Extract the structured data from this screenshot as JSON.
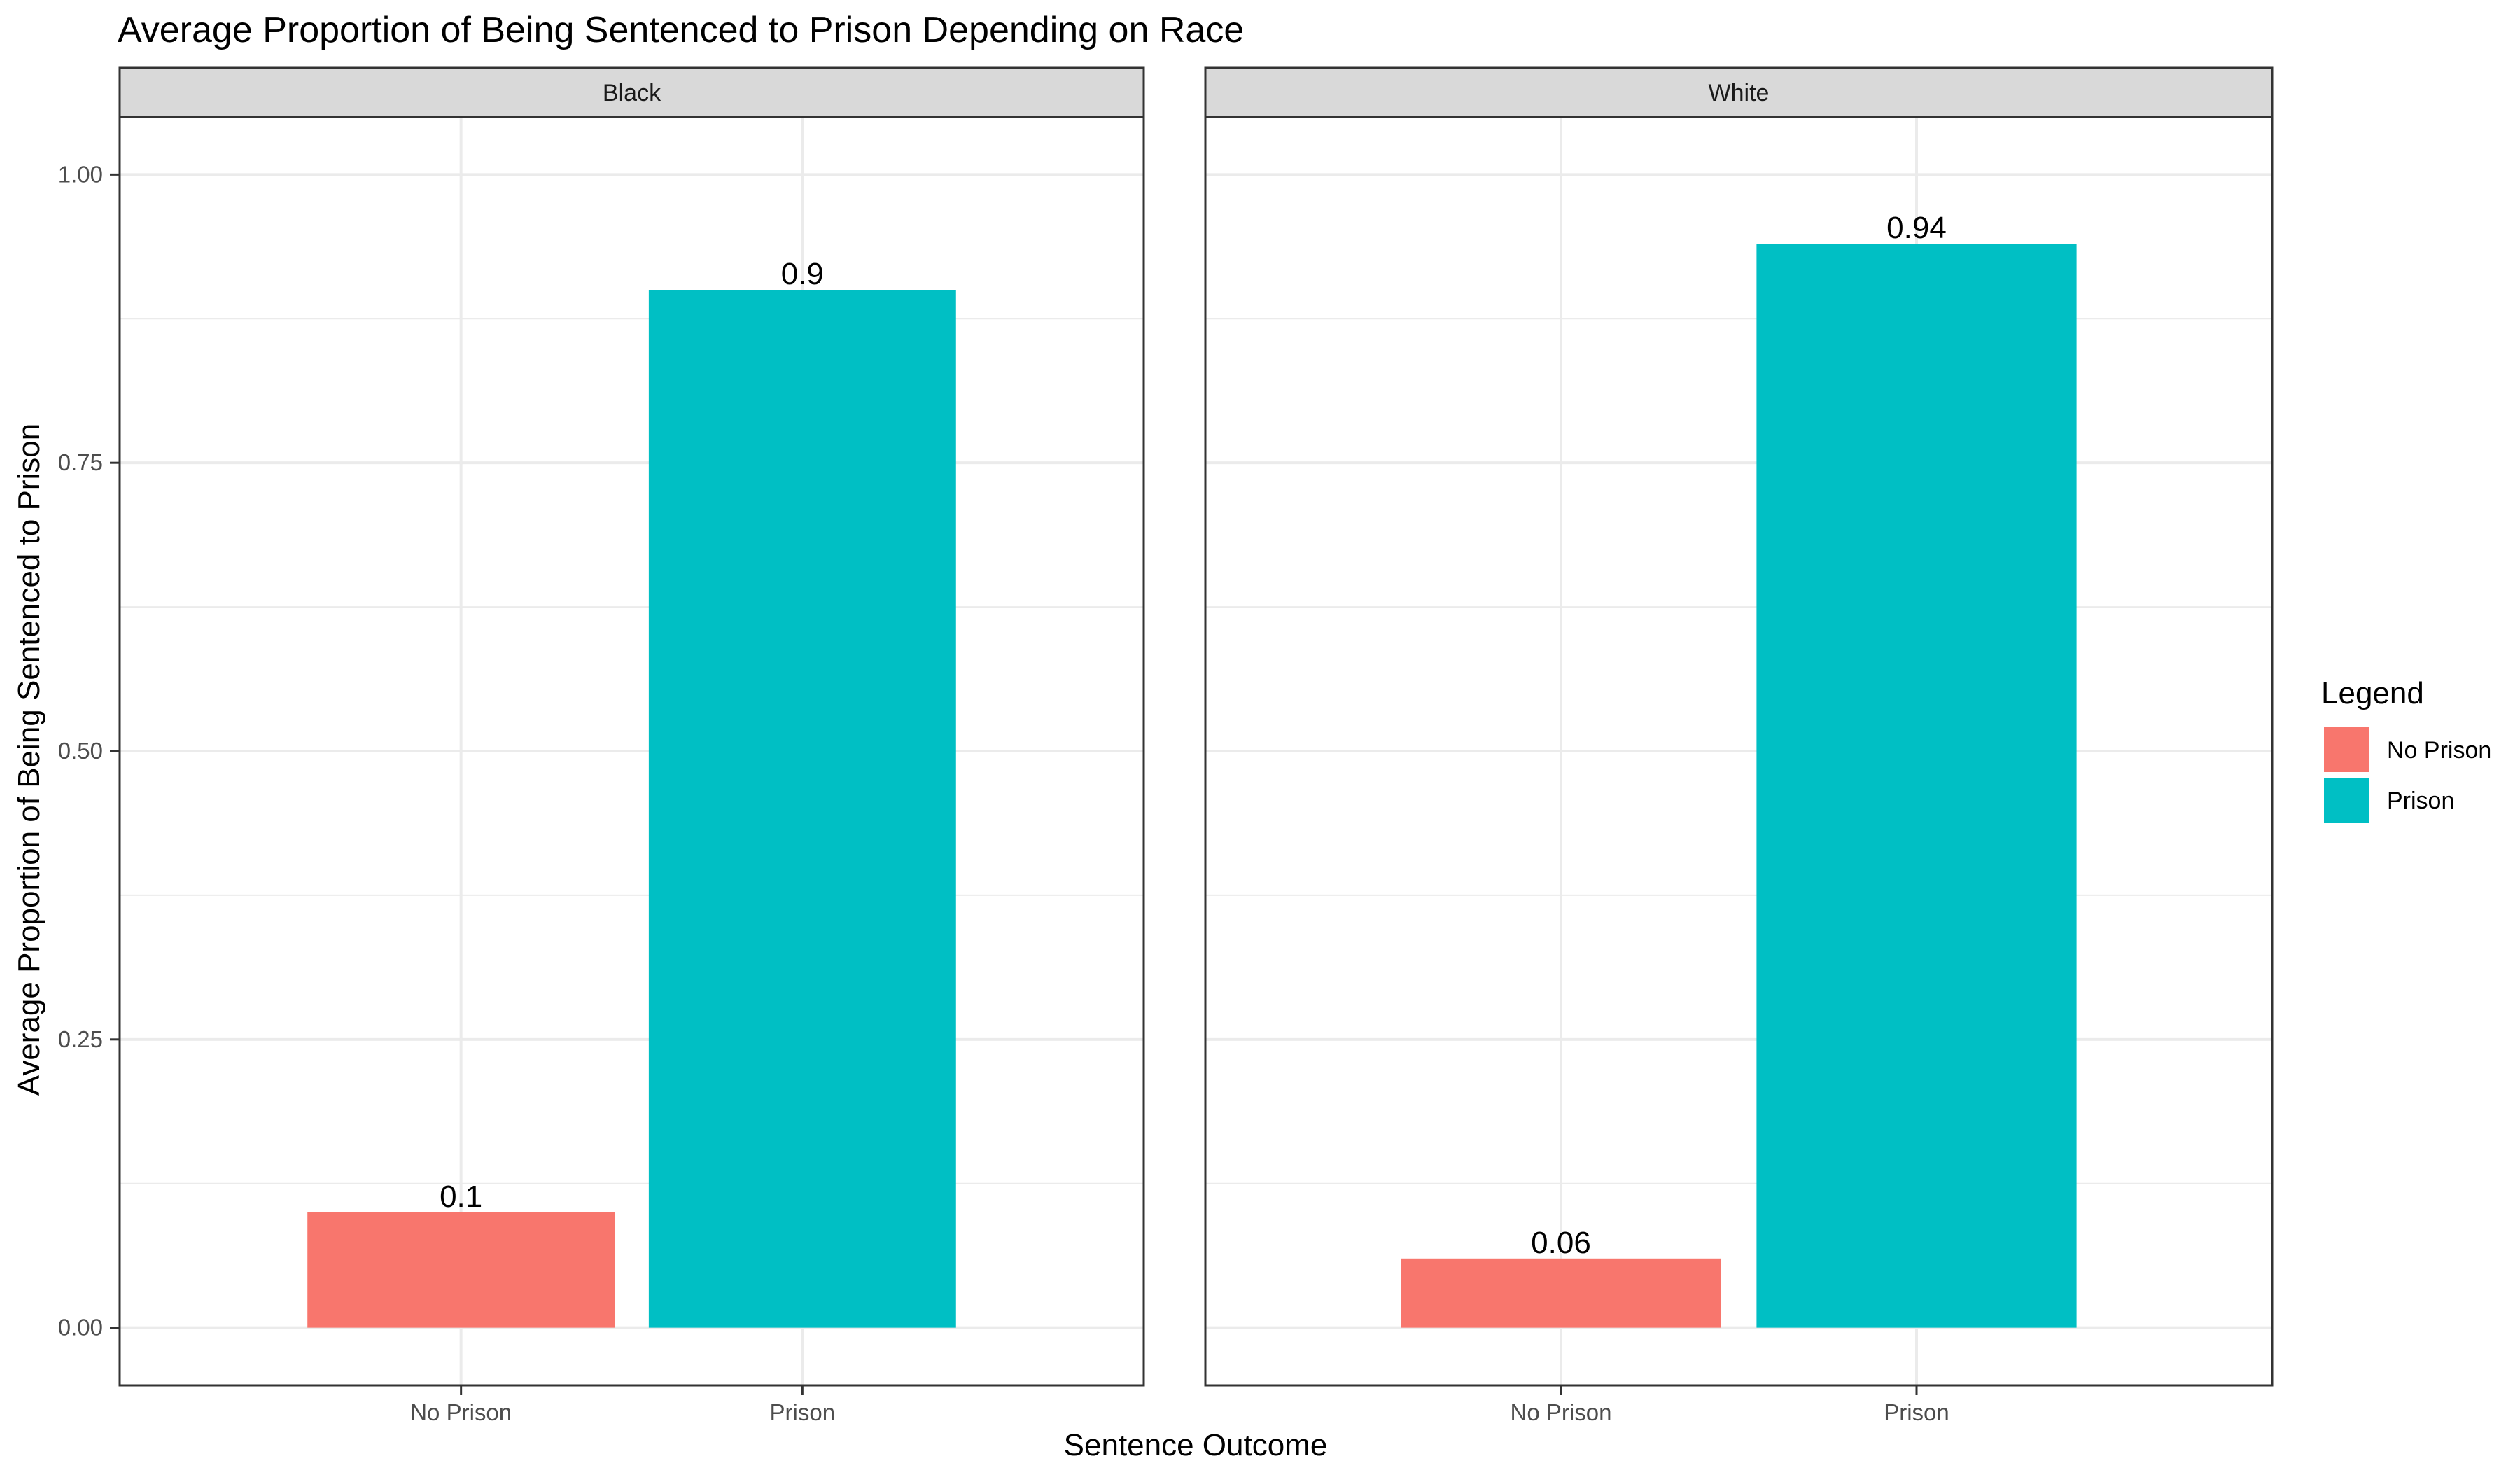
{
  "chart_data": {
    "type": "bar",
    "title": "Average Proportion of Being Sentenced to Prison Depending on Race",
    "xlabel": "Sentence Outcome",
    "ylabel": "Average Proportion of Being Sentenced to Prison",
    "ylim": [
      -0.05,
      1.05
    ],
    "yticks": [
      "0.00",
      "0.25",
      "0.50",
      "0.75",
      "1.00"
    ],
    "grid": true,
    "categories": [
      "No Prison",
      "Prison"
    ],
    "facets": [
      {
        "name": "Black",
        "values": [
          0.1,
          0.9
        ],
        "labels": [
          "0.1",
          "0.9"
        ]
      },
      {
        "name": "White",
        "values": [
          0.06,
          0.94
        ],
        "labels": [
          "0.06",
          "0.94"
        ]
      }
    ],
    "legend": {
      "title": "Legend",
      "position": "right",
      "entries": [
        {
          "label": "No Prison",
          "color": "#F8766D"
        },
        {
          "label": "Prison",
          "color": "#00BFC4"
        }
      ]
    }
  }
}
